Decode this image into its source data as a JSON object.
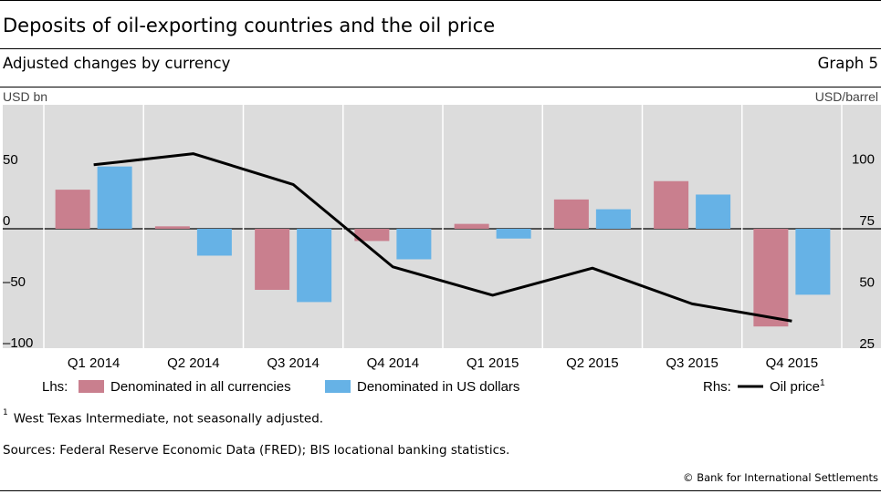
{
  "header": {
    "title": "Deposits of oil-exporting countries and the oil price",
    "subtitle": "Adjusted changes by currency",
    "graph_number": "Graph 5"
  },
  "footer": {
    "footnote_marker": "1",
    "footnote": "West Texas Intermediate, not seasonally adjusted.",
    "sources": "Sources: Federal Reserve Economic Data (FRED); BIS locational banking statistics.",
    "copyright": "© Bank for International Settlements"
  },
  "colors": {
    "series_all": "#c97f8e",
    "series_usd": "#66b2e6",
    "oil": "#000000",
    "plot_bg": "#dcdcdc"
  },
  "chart_data": {
    "type": "bar",
    "categories": [
      "Q1 2014",
      "Q2 2014",
      "Q3 2014",
      "Q4 2014",
      "Q1 2015",
      "Q2 2015",
      "Q3 2015",
      "Q4 2015"
    ],
    "lhs_unit": "USD bn",
    "rhs_unit": "USD/barrel",
    "ylim_left": [
      -100,
      100
    ],
    "ylim_right": [
      25,
      100
    ],
    "yticks_left": [
      "50",
      "0",
      "–50",
      "–100"
    ],
    "yticks_left_values": [
      50,
      0,
      -50,
      -100
    ],
    "yticks_right": [
      "100",
      "75",
      "50",
      "25"
    ],
    "yticks_right_values": [
      100,
      75,
      50,
      25
    ],
    "series": [
      {
        "name": "Denominated in all currencies",
        "axis": "left",
        "kind": "bar",
        "values": [
          32,
          2,
          -50,
          -10,
          4,
          24,
          39,
          -80
        ]
      },
      {
        "name": "Denominated in US dollars",
        "axis": "left",
        "kind": "bar",
        "values": [
          51,
          -22,
          -60,
          -25,
          -8,
          16,
          28,
          -54
        ]
      },
      {
        "name": "Oil price",
        "axis": "right",
        "kind": "line",
        "values": [
          101,
          105.5,
          93,
          59.5,
          48,
          59,
          44.5,
          37.5
        ],
        "marker": "1"
      }
    ],
    "legend": {
      "lhs_label": "Lhs:",
      "rhs_label": "Rhs:",
      "position": "bottom"
    },
    "grid": false
  }
}
